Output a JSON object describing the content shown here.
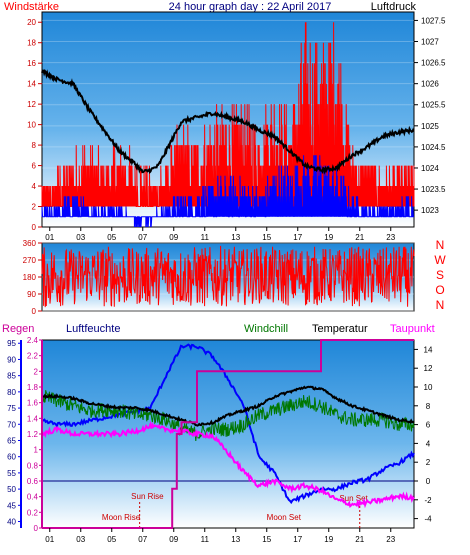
{
  "colors": {
    "red": "#ff0000",
    "blue": "#0000ff",
    "green": "#007700",
    "black": "#000000",
    "magenta": "#ff00ff",
    "darkmagenta": "#cc0099",
    "navy": "#000080",
    "darkred": "#cc0000"
  },
  "chart_data": [
    {
      "type": "line",
      "title": "24 hour graph day : 22 April 2017",
      "left_axis_label": "Windstärke",
      "right_axis_label": "Luftdruck",
      "x_ticks": [
        "01",
        "03",
        "05",
        "07",
        "09",
        "11",
        "13",
        "15",
        "17",
        "19",
        "21",
        "23"
      ],
      "left_ticks": [
        0,
        2,
        4,
        6,
        8,
        10,
        12,
        14,
        16,
        18,
        20
      ],
      "right_ticks": [
        1023,
        1023.5,
        1024,
        1024.5,
        1025,
        1025.5,
        1026,
        1026.5,
        1027,
        1027.5
      ],
      "xlim": [
        0,
        24
      ],
      "left_ylim": [
        0,
        21
      ],
      "right_ylim": [
        1022.6,
        1027.7
      ],
      "series": [
        {
          "kind": "pressure",
          "axis": "right",
          "x": [
            0,
            1,
            2,
            3,
            4,
            5,
            6,
            6.5,
            7,
            7.5,
            8,
            9,
            10,
            11,
            12,
            13,
            14,
            15,
            16,
            17,
            18,
            19,
            20,
            21,
            22,
            23,
            24
          ],
          "y": [
            1026.3,
            1026.1,
            1026.0,
            1025.4,
            1024.9,
            1024.4,
            1024.1,
            1023.9,
            1023.95,
            1024.05,
            1024.4,
            1025.1,
            1025.2,
            1025.3,
            1025.2,
            1025.1,
            1024.9,
            1024.75,
            1024.4,
            1024.05,
            1023.95,
            1024.0,
            1024.3,
            1024.5,
            1024.75,
            1024.85,
            1024.9
          ]
        },
        {
          "kind": "gust",
          "axis": "left",
          "x": [
            0,
            1,
            2,
            3,
            4,
            5,
            6,
            7,
            8,
            9,
            10,
            11,
            12,
            13,
            14,
            15,
            16,
            17,
            18,
            19,
            20,
            21,
            22,
            23,
            24
          ],
          "y": [
            4,
            6,
            7,
            9,
            6,
            9,
            7,
            5,
            7,
            10,
            9,
            11,
            12,
            12,
            11,
            13,
            11,
            20,
            18,
            21,
            8,
            7,
            6,
            6,
            7
          ]
        },
        {
          "kind": "wind",
          "axis": "left",
          "x": [
            0,
            1,
            2,
            3,
            4,
            5,
            6,
            7,
            8,
            9,
            10,
            11,
            12,
            13,
            14,
            15,
            16,
            17,
            18,
            19,
            20,
            21,
            22,
            23,
            24
          ],
          "y": [
            2,
            2,
            3,
            2,
            2,
            2,
            1,
            1,
            2,
            3,
            3,
            4,
            4,
            4,
            3,
            5,
            5,
            6,
            6,
            5,
            3,
            2,
            2,
            2,
            3
          ]
        }
      ]
    },
    {
      "type": "scatter",
      "right_labels": [
        "N",
        "W",
        "S",
        "O",
        "N"
      ],
      "left_ticks": [
        0,
        90,
        180,
        270,
        360
      ],
      "ylim": [
        0,
        360
      ],
      "xlim": [
        0,
        24
      ],
      "series": [
        {
          "kind": "direction",
          "min": [
            10,
            20,
            30,
            40,
            20,
            15,
            30,
            25,
            35,
            20,
            15,
            20,
            25,
            30,
            40,
            20,
            25,
            20,
            30,
            35,
            25,
            20,
            30,
            25,
            20
          ],
          "max": [
            340,
            350,
            330,
            340,
            350,
            345,
            330,
            340,
            350,
            335,
            345,
            340,
            350,
            330,
            345,
            340,
            335,
            350,
            340,
            330,
            345,
            340,
            335,
            350,
            340
          ]
        }
      ]
    },
    {
      "type": "line",
      "header_labels": [
        "Regen",
        "Luftfeuchte",
        "Windchill",
        "Temperatur",
        "Taupunkt"
      ],
      "x_ticks": [
        "01",
        "03",
        "05",
        "07",
        "09",
        "11",
        "13",
        "15",
        "17",
        "19",
        "21",
        "23"
      ],
      "rain_ticks": [
        0,
        0.2,
        0.4,
        0.6,
        0.8,
        1,
        1.2,
        1.4,
        1.6,
        1.8,
        2,
        2.2,
        2.4
      ],
      "rain_ylim": [
        0,
        2.4
      ],
      "humidity_ticks": [
        40,
        45,
        50,
        55,
        60,
        65,
        70,
        75,
        80,
        85,
        90,
        95
      ],
      "humidity_ylim": [
        38,
        96
      ],
      "temp_ticks": [
        -4,
        -2,
        0,
        2,
        4,
        6,
        8,
        10,
        12,
        14
      ],
      "temp_ylim": [
        -5,
        15
      ],
      "xlim": [
        0,
        24
      ],
      "annotations": {
        "sun_rise": "Sun Rise",
        "sun_set": "Sun Set",
        "moon_rise": "Moon Rise",
        "moon_set": "Moon Set"
      },
      "series": [
        {
          "kind": "temperature",
          "x": [
            0,
            1,
            2,
            3,
            4,
            5,
            6,
            7,
            8,
            9,
            10,
            11,
            12,
            13,
            14,
            15,
            16,
            17,
            18,
            19,
            20,
            21,
            22,
            23,
            24
          ],
          "y": [
            9,
            9,
            8.8,
            8.3,
            8,
            7.8,
            7.8,
            7.5,
            7,
            6.5,
            6,
            6.2,
            7,
            7.5,
            8,
            9,
            9.5,
            10,
            9.8,
            8.8,
            8,
            7.5,
            7,
            6.5,
            6.3
          ]
        },
        {
          "kind": "windchill",
          "x": [
            0,
            1,
            2,
            3,
            4,
            5,
            6,
            7,
            8,
            9,
            10,
            11,
            12,
            13,
            14,
            15,
            16,
            17,
            18,
            19,
            20,
            21,
            22,
            23,
            24
          ],
          "y": [
            9,
            8.5,
            8,
            7.5,
            7.6,
            7.5,
            7,
            7,
            6.5,
            5.5,
            5,
            5.5,
            5.5,
            6,
            7,
            7.5,
            8,
            8.5,
            8,
            7,
            6.5,
            6.5,
            6.5,
            6,
            6
          ]
        },
        {
          "kind": "dewpoint",
          "x": [
            0,
            1,
            2,
            3,
            4,
            5,
            6,
            7,
            8,
            9,
            10,
            11,
            12,
            13,
            14,
            15,
            16,
            17,
            18,
            19,
            20,
            21,
            22,
            23,
            24
          ],
          "y": [
            5,
            5.5,
            5,
            5,
            5,
            5,
            5.3,
            5.8,
            5.5,
            5.3,
            5,
            4.8,
            3,
            1,
            -0.5,
            0,
            -0.8,
            -0.5,
            -1,
            -2,
            -2.5,
            -2.3,
            -2,
            -1.6,
            -1.8
          ]
        },
        {
          "kind": "humidity",
          "x": [
            0,
            1,
            2,
            3,
            4,
            5,
            6,
            7,
            8,
            9,
            10,
            11,
            12,
            13,
            14,
            15,
            16,
            17,
            18,
            19,
            20,
            21,
            22,
            23,
            24
          ],
          "y": [
            71,
            70,
            70,
            71,
            72,
            73,
            74,
            75,
            85,
            94,
            94,
            91,
            84,
            76,
            60,
            55,
            46,
            48,
            50,
            50,
            52,
            53,
            56,
            58,
            61
          ]
        },
        {
          "kind": "rain",
          "x": [
            0,
            8,
            8.4,
            8.7,
            9,
            9.4,
            10,
            12,
            14,
            16,
            18,
            20,
            22,
            23.4,
            24
          ],
          "y": [
            0,
            0,
            0.5,
            1.2,
            1.35,
            1.35,
            2.0,
            2.0,
            2.0,
            2.0,
            2.4,
            2.4,
            2.4,
            2.4,
            2.4
          ]
        }
      ]
    }
  ]
}
